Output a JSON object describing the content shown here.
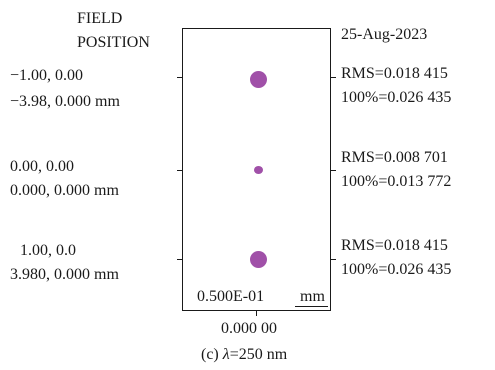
{
  "header": {
    "field_line1": "FIELD",
    "field_line2": "POSITION",
    "date": "25-Aug-2023"
  },
  "fields": [
    {
      "position": "−1.00, 0.00",
      "image": "−3.98, 0.000 mm",
      "rms": "RMS=0.018 415",
      "pct100": "100%=0.026 435"
    },
    {
      "position": "0.00, 0.00",
      "image": "0.000, 0.000 mm",
      "rms": "RMS=0.008 701",
      "pct100": "100%=0.013 772"
    },
    {
      "position": "1.00, 0.0",
      "image": "3.980, 0.000 mm",
      "rms": "RMS=0.018 415",
      "pct100": "100%=0.026 435"
    }
  ],
  "scale": {
    "value": "0.500E-01",
    "unit": "mm"
  },
  "defocus": "0.000 00",
  "caption": {
    "prefix": "(c) ",
    "lambda": "λ",
    "suffix": "=250 nm"
  },
  "colors": {
    "spot": "#a050a8",
    "ink": "#1a1a1a"
  }
}
